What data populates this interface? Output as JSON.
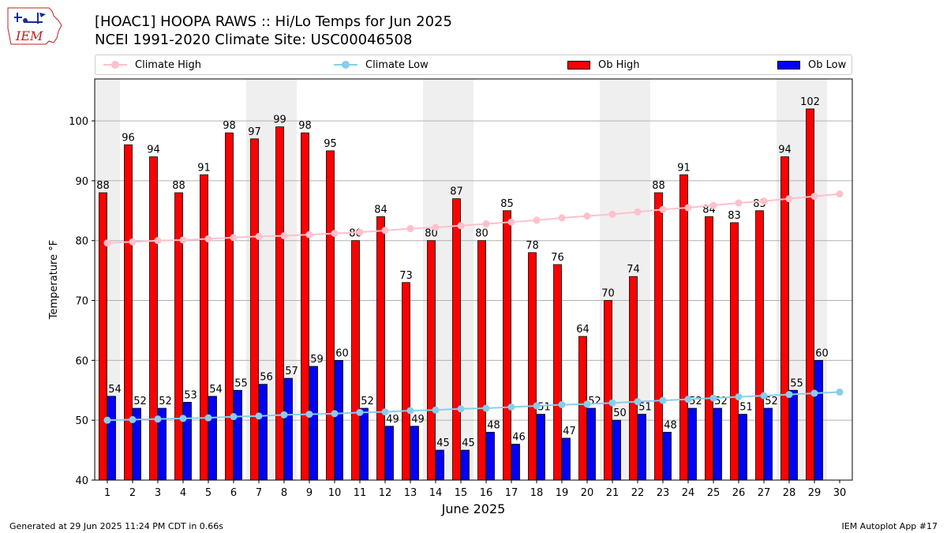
{
  "header": {
    "logo_text": "IEM",
    "title_line1": "[HOAC1] HOOPA RAWS :: Hi/Lo Temps for Jun 2025",
    "title_line2": "NCEI 1991-2020 Climate Site: USC00046508"
  },
  "legend": {
    "climate_high": "Climate High",
    "climate_low": "Climate Low",
    "ob_high": "Ob High",
    "ob_low": "Ob Low"
  },
  "colors": {
    "ob_high": "#ff0000",
    "ob_low": "#0000ff",
    "climate_high": "#ffc0cb",
    "climate_low": "#87ceeb",
    "weekend_shade": "#efefef",
    "grid": "#b0b0b0"
  },
  "footer": {
    "left": "Generated at 29 Jun 2025 11:24 PM CDT in 0.66s",
    "right": "IEM Autoplot App #17"
  },
  "chart_data": {
    "type": "bar",
    "xlabel": "June 2025",
    "ylabel": "Temperature °F",
    "ylim": [
      40,
      107
    ],
    "yticks": [
      40,
      50,
      60,
      70,
      80,
      90,
      100
    ],
    "categories": [
      "1",
      "2",
      "3",
      "4",
      "5",
      "6",
      "7",
      "8",
      "9",
      "10",
      "11",
      "12",
      "13",
      "14",
      "15",
      "16",
      "17",
      "18",
      "19",
      "20",
      "21",
      "22",
      "23",
      "24",
      "25",
      "26",
      "27",
      "28",
      "29",
      "30"
    ],
    "grid": "horizontal",
    "shaded_days": [
      1,
      7,
      8,
      14,
      15,
      21,
      22,
      28,
      29
    ],
    "series": [
      {
        "name": "Ob High",
        "kind": "bar",
        "values": [
          88,
          96,
          94,
          88,
          91,
          98,
          97,
          99,
          98,
          95,
          80,
          84,
          73,
          80,
          87,
          80,
          85,
          78,
          76,
          64,
          70,
          74,
          88,
          91,
          84,
          83,
          85,
          94,
          102,
          null
        ]
      },
      {
        "name": "Ob Low",
        "kind": "bar",
        "values": [
          54,
          52,
          52,
          53,
          54,
          55,
          56,
          57,
          59,
          60,
          52,
          49,
          49,
          45,
          45,
          48,
          46,
          51,
          47,
          52,
          50,
          51,
          48,
          52,
          52,
          51,
          52,
          55,
          60,
          null
        ]
      },
      {
        "name": "Climate High",
        "kind": "line",
        "values": [
          79.6,
          79.8,
          80.0,
          80.1,
          80.3,
          80.5,
          80.7,
          80.8,
          81.0,
          81.2,
          81.4,
          81.7,
          82.0,
          82.2,
          82.5,
          82.8,
          83.1,
          83.4,
          83.8,
          84.1,
          84.4,
          84.8,
          85.2,
          85.5,
          85.9,
          86.3,
          86.6,
          87.0,
          87.4,
          87.8
        ]
      },
      {
        "name": "Climate Low",
        "kind": "line",
        "values": [
          50.0,
          50.1,
          50.2,
          50.3,
          50.4,
          50.6,
          50.7,
          50.9,
          51.0,
          51.1,
          51.3,
          51.4,
          51.6,
          51.7,
          51.9,
          52.0,
          52.2,
          52.4,
          52.6,
          52.7,
          52.9,
          53.1,
          53.3,
          53.5,
          53.7,
          53.9,
          54.1,
          54.3,
          54.5,
          54.7
        ]
      }
    ]
  }
}
